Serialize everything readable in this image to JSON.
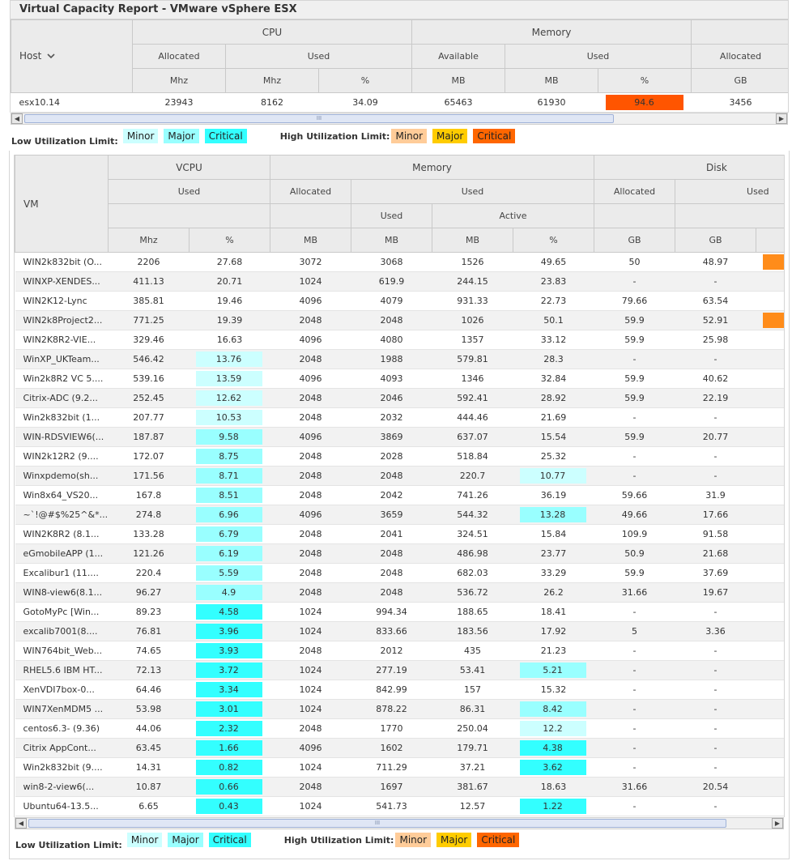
{
  "title": "Virtual Capacity Report - VMware vSphere ESX",
  "colors": {
    "low_minor": "#ccffff",
    "low_major": "#99ffff",
    "low_critical": "#33ffff",
    "high_minor": "#ffcc99",
    "high_major": "#ffcc00",
    "high_critical": "#ff6600",
    "host_critical_cell": "#ff5500",
    "vm_orange_cell": "#ff8c1a"
  },
  "host_table": {
    "row_header": "Host",
    "sort_icon": "chevron-down-icon",
    "groups": {
      "cpu": "CPU",
      "memory": "Memory"
    },
    "subheads": {
      "allocated": "Allocated",
      "used": "Used",
      "available": "Available"
    },
    "units": {
      "mhz": "Mhz",
      "pct": "%",
      "mb": "MB",
      "gb": "GB"
    },
    "row": {
      "host": "esx10.14",
      "cpu_alloc": "23943",
      "cpu_used_mhz": "8162",
      "cpu_used_pct": "34.09",
      "mem_avail": "65463",
      "mem_used_mb": "61930",
      "mem_used_pct": "94.6",
      "disk_alloc": "3456"
    }
  },
  "legend": {
    "low_label": "Low Utilization Limit:",
    "high_label": "High Utilization Limit:",
    "minor": "Minor",
    "major": "Major",
    "critical": "Critical"
  },
  "scroll_grip": "III",
  "vm_table": {
    "row_header": "VM",
    "groups": {
      "vcpu": "VCPU",
      "memory": "Memory",
      "disk": "Disk"
    },
    "subheads": {
      "used": "Used",
      "allocated": "Allocated",
      "active": "Active"
    },
    "units": {
      "mhz": "Mhz",
      "pct": "%",
      "mb": "MB",
      "gb": "GB"
    },
    "rows": [
      [
        "WIN2k832bit (O...",
        "2206",
        "27.68",
        "3072",
        "3068",
        "1526",
        "49.65",
        "50",
        "48.97"
      ],
      [
        "WINXP-XENDES...",
        "411.13",
        "20.71",
        "1024",
        "619.9",
        "244.15",
        "23.83",
        "-",
        "-"
      ],
      [
        "WIN2K12-Lync",
        "385.81",
        "19.46",
        "4096",
        "4079",
        "931.33",
        "22.73",
        "79.66",
        "63.54"
      ],
      [
        "WIN2k8Project2...",
        "771.25",
        "19.39",
        "2048",
        "2048",
        "1026",
        "50.1",
        "59.9",
        "52.91"
      ],
      [
        "WIN2K8R2-VIE...",
        "329.46",
        "16.63",
        "4096",
        "4080",
        "1357",
        "33.12",
        "59.9",
        "25.98"
      ],
      [
        "WinXP_UKTeam...",
        "546.42",
        "13.76",
        "2048",
        "1988",
        "579.81",
        "28.3",
        "-",
        "-"
      ],
      [
        "Win2k8R2 VC 5....",
        "539.16",
        "13.59",
        "4096",
        "4093",
        "1346",
        "32.84",
        "59.9",
        "40.62"
      ],
      [
        "Citrix-ADC (9.2...",
        "252.45",
        "12.62",
        "2048",
        "2046",
        "592.41",
        "28.92",
        "59.9",
        "22.19"
      ],
      [
        "Win2k832bit (1...",
        "207.77",
        "10.53",
        "2048",
        "2032",
        "444.46",
        "21.69",
        "-",
        "-"
      ],
      [
        "WIN-RDSVIEW6(...",
        "187.87",
        "9.58",
        "4096",
        "3869",
        "637.07",
        "15.54",
        "59.9",
        "20.77"
      ],
      [
        "WIN2k12R2 (9....",
        "172.07",
        "8.75",
        "2048",
        "2028",
        "518.84",
        "25.32",
        "-",
        "-"
      ],
      [
        "Winxpdemo(sh...",
        "171.56",
        "8.71",
        "2048",
        "2048",
        "220.7",
        "10.77",
        "-",
        "-"
      ],
      [
        "Win8x64_VS20...",
        "167.8",
        "8.51",
        "2048",
        "2042",
        "741.26",
        "36.19",
        "59.66",
        "31.9"
      ],
      [
        "~`!@#$%25^&*...",
        "274.8",
        "6.96",
        "4096",
        "3659",
        "544.32",
        "13.28",
        "49.66",
        "17.66"
      ],
      [
        "WIN2K8R2 (8.1...",
        "133.28",
        "6.79",
        "2048",
        "2041",
        "324.51",
        "15.84",
        "109.9",
        "91.58"
      ],
      [
        "eGmobileAPP (1...",
        "121.26",
        "6.19",
        "2048",
        "2048",
        "486.98",
        "23.77",
        "50.9",
        "21.68"
      ],
      [
        "Excalibur1 (11....",
        "220.4",
        "5.59",
        "2048",
        "2048",
        "682.03",
        "33.29",
        "59.9",
        "37.69"
      ],
      [
        "WIN8-view6(8.1...",
        "96.27",
        "4.9",
        "2048",
        "2048",
        "536.72",
        "26.2",
        "31.66",
        "19.67"
      ],
      [
        "GotoMyPc [Win...",
        "89.23",
        "4.58",
        "1024",
        "994.34",
        "188.65",
        "18.41",
        "-",
        "-"
      ],
      [
        "excalib7001(8....",
        "76.81",
        "3.96",
        "1024",
        "833.66",
        "183.56",
        "17.92",
        "5",
        "3.36"
      ],
      [
        "WIN764bit_Web...",
        "74.65",
        "3.93",
        "2048",
        "2012",
        "435",
        "21.23",
        "-",
        "-"
      ],
      [
        "RHEL5.6 IBM HT...",
        "72.13",
        "3.72",
        "1024",
        "277.19",
        "53.41",
        "5.21",
        "-",
        "-"
      ],
      [
        "XenVDI7box-0...",
        "64.46",
        "3.34",
        "1024",
        "842.99",
        "157",
        "15.32",
        "-",
        "-"
      ],
      [
        "WIN7XenMDM5 ...",
        "53.98",
        "3.01",
        "1024",
        "878.22",
        "86.31",
        "8.42",
        "-",
        "-"
      ],
      [
        "centos6.3- (9.36)",
        "44.06",
        "2.32",
        "2048",
        "1770",
        "250.04",
        "12.2",
        "-",
        "-"
      ],
      [
        "Citrix AppCont...",
        "63.45",
        "1.66",
        "4096",
        "1602",
        "179.71",
        "4.38",
        "-",
        "-"
      ],
      [
        "Win2k832bit (9....",
        "14.31",
        "0.82",
        "1024",
        "711.29",
        "37.21",
        "3.62",
        "-",
        "-"
      ],
      [
        "win8-2-view6(...",
        "10.87",
        "0.66",
        "2048",
        "1697",
        "381.67",
        "18.63",
        "31.66",
        "20.54"
      ],
      [
        "Ubuntu64-13.5...",
        "6.65",
        "0.43",
        "1024",
        "541.73",
        "12.57",
        "1.22",
        "-",
        "-"
      ]
    ],
    "vcpu_pct_highlight": [
      "",
      "",
      "",
      "",
      "",
      "minor",
      "minor",
      "minor",
      "minor",
      "major",
      "major",
      "major",
      "major",
      "major",
      "major",
      "major",
      "major",
      "major",
      "critical",
      "critical",
      "critical",
      "critical",
      "critical",
      "critical",
      "critical",
      "critical",
      "critical",
      "critical",
      "critical"
    ],
    "active_pct_highlight": [
      "",
      "",
      "",
      "",
      "",
      "",
      "",
      "",
      "",
      "",
      "",
      "minor",
      "",
      "major",
      "",
      "",
      "",
      "",
      "",
      "",
      "",
      "major",
      "",
      "major",
      "minor",
      "critical",
      "critical",
      "",
      "critical"
    ],
    "right_edge_cells": [
      "orange",
      "",
      "",
      "orange",
      "",
      "",
      "",
      "",
      "",
      "",
      "",
      "",
      "",
      "",
      "",
      "",
      "",
      "",
      "",
      "",
      "",
      "",
      "",
      "",
      "",
      "",
      "",
      "",
      ""
    ]
  }
}
